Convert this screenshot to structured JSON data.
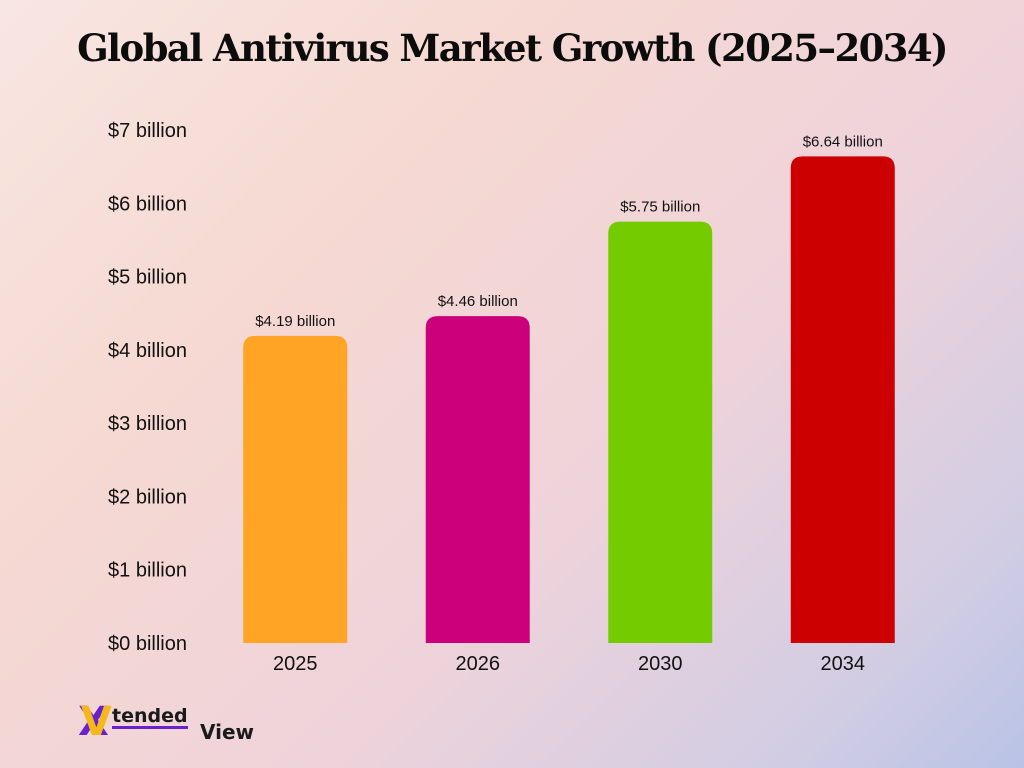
{
  "chart_data": {
    "type": "bar",
    "title": "Global Antivirus Market Growth (2025–2034)",
    "categories": [
      "2025",
      "2026",
      "2030",
      "2034"
    ],
    "values": [
      4.19,
      4.46,
      5.75,
      6.64
    ],
    "data_labels": [
      "$4.19 billion",
      "$4.46 billion",
      "$5.75 billion",
      "$6.64 billion"
    ],
    "colors": [
      "#ffa424",
      "#cc007a",
      "#74cc00",
      "#cc0000"
    ],
    "ylim": [
      0,
      7
    ],
    "yticks": [
      0,
      1,
      2,
      3,
      4,
      5,
      6,
      7
    ],
    "ytick_labels": [
      "$0 billion",
      "$1 billion",
      "$2 billion",
      "$3 billion",
      "$4 billion",
      "$5 billion",
      "$6 billion",
      "$7 billion"
    ],
    "grid": false,
    "legend": "none"
  },
  "brand": {
    "logo_mark": "XV",
    "logo_word_1": "tended",
    "logo_word_2": "View",
    "colors": {
      "primary": "#6a1fd0",
      "secondary": "#f5b81a"
    }
  }
}
